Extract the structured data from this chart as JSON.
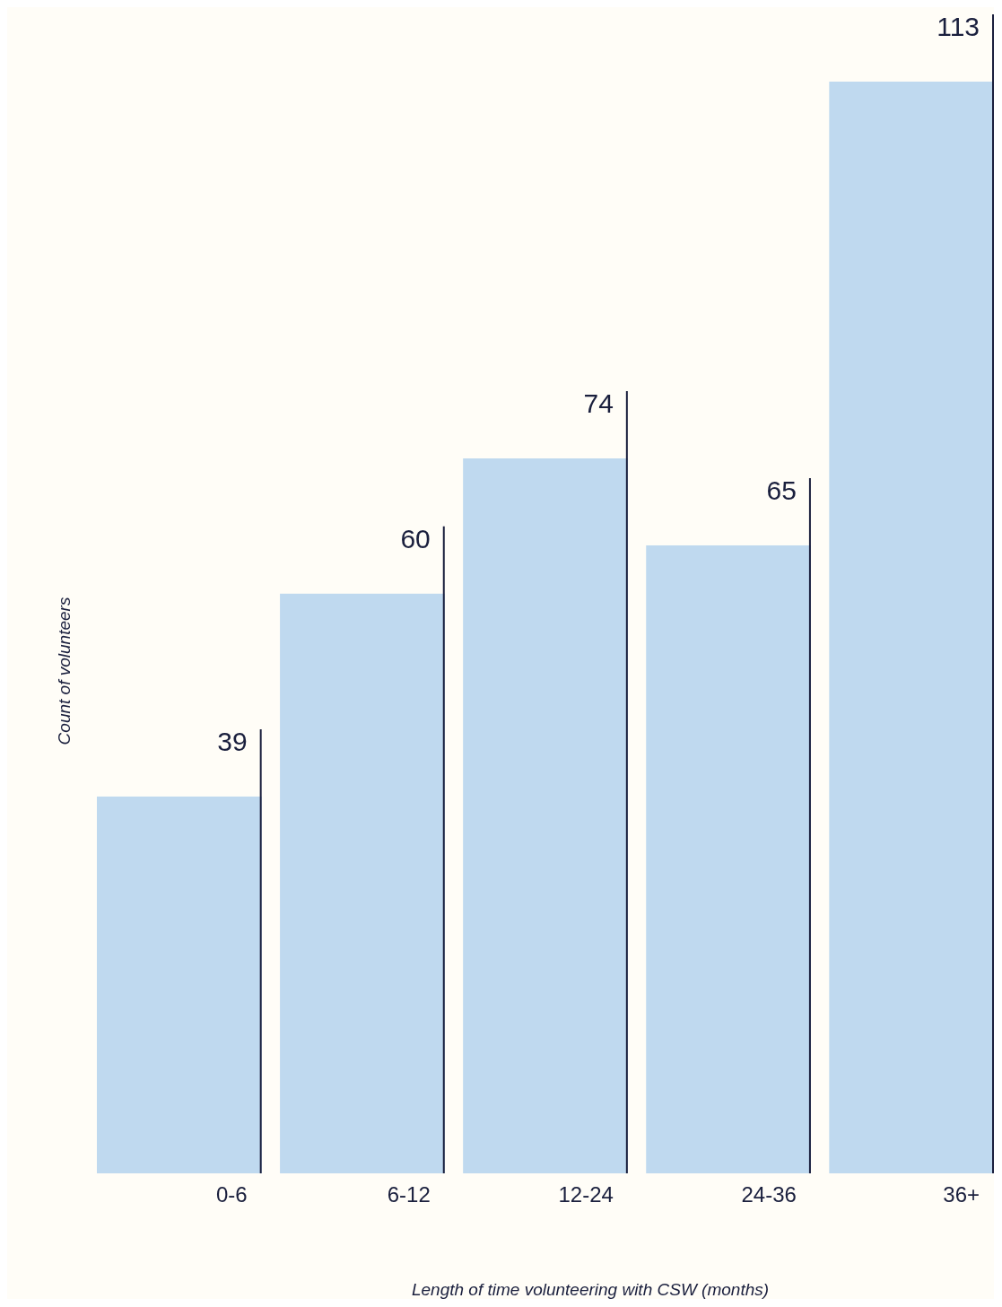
{
  "chart_data": {
    "type": "bar",
    "xlabel": "Length of time volunteering with CSW (months)",
    "ylabel": "Count of volunteers",
    "categories": [
      "0-6",
      "6-12",
      "12-24",
      "24-36",
      "36+"
    ],
    "values": [
      39,
      60,
      74,
      65,
      113
    ],
    "color": "#bfd9ef",
    "data_labels": true
  }
}
